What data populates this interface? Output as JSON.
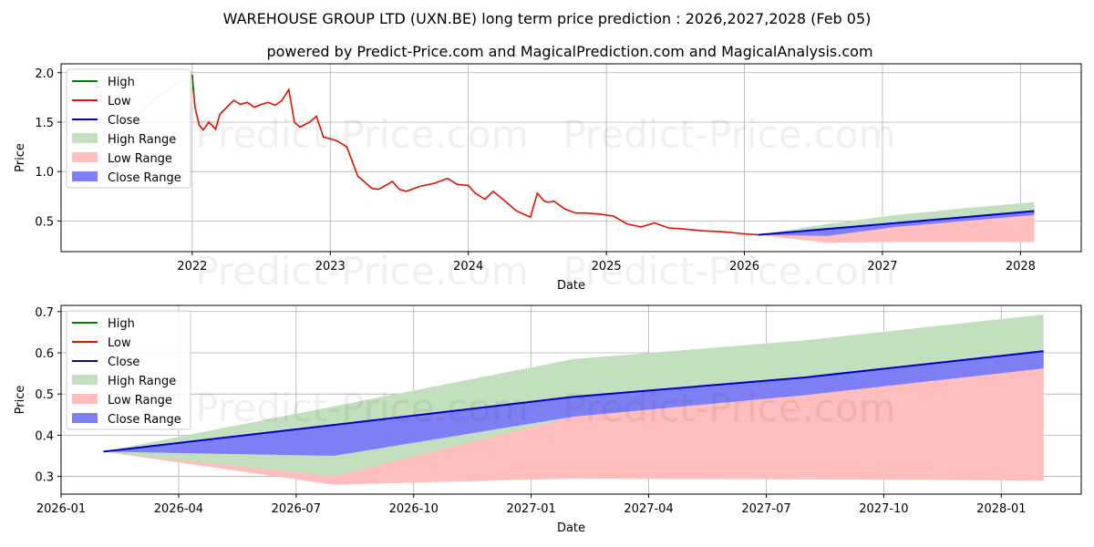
{
  "title": "WAREHOUSE GROUP LTD (UXN.BE) long term price prediction : 2026,2027,2028 (Feb 05)",
  "subtitle": "powered by Predict-Price.com and MagicalPrediction.com and MagicalAnalysis.com",
  "watermark": "Predict-Price.com",
  "colors": {
    "high": "#008000",
    "low": "#dd1100",
    "close": "#0000cc",
    "high_range": "#c2e0bd",
    "low_range": "#ffbdbd",
    "close_range": "#7f7ff5",
    "grid": "#b0b0b0"
  },
  "chart_data": [
    {
      "type": "line",
      "name": "historical-and-forecast",
      "xlabel": "Date",
      "ylabel": "Price",
      "xlim": [
        2021.05,
        2028.44
      ],
      "ylim": [
        0.19,
        2.09
      ],
      "grid": true,
      "legend_position": "top-left",
      "x_ticks": [
        2022,
        2023,
        2024,
        2025,
        2026,
        2027,
        2028
      ],
      "x_tick_labels": [
        "2022",
        "2023",
        "2024",
        "2025",
        "2026",
        "2027",
        "2028"
      ],
      "y_ticks": [
        0.5,
        1.0,
        1.5,
        2.0
      ],
      "y_tick_labels": [
        "0.5",
        "1.0",
        "1.5",
        "2.0"
      ],
      "legend": [
        "High",
        "Low",
        "Close",
        "High Range",
        "Low Range",
        "Close Range"
      ],
      "history_faded": {
        "x": [
          2021.5,
          2021.58,
          2021.66,
          2021.74,
          2021.82,
          2021.9,
          2021.99
        ],
        "y": [
          1.45,
          1.56,
          1.64,
          1.75,
          1.82,
          1.92,
          1.9
        ]
      },
      "history": {
        "x": [
          2022.0,
          2022.02,
          2022.05,
          2022.08,
          2022.12,
          2022.17,
          2022.2,
          2022.25,
          2022.3,
          2022.35,
          2022.4,
          2022.45,
          2022.5,
          2022.55,
          2022.6,
          2022.65,
          2022.7,
          2022.74,
          2022.78,
          2022.85,
          2022.9,
          2022.95,
          2023.0,
          2023.05,
          2023.12,
          2023.2,
          2023.22,
          2023.3,
          2023.35,
          2023.45,
          2023.5,
          2023.55,
          2023.65,
          2023.75,
          2023.85,
          2023.92,
          2024.0,
          2024.05,
          2024.12,
          2024.18,
          2024.25,
          2024.35,
          2024.45,
          2024.5,
          2024.55,
          2024.58,
          2024.62,
          2024.7,
          2024.78,
          2024.85,
          2024.95,
          2025.05,
          2025.15,
          2025.25,
          2025.35,
          2025.45,
          2025.55,
          2025.7,
          2025.85,
          2026.0,
          2026.1
        ],
        "y": [
          1.98,
          1.65,
          1.47,
          1.42,
          1.5,
          1.43,
          1.58,
          1.65,
          1.72,
          1.68,
          1.7,
          1.65,
          1.68,
          1.7,
          1.67,
          1.72,
          1.83,
          1.5,
          1.45,
          1.5,
          1.56,
          1.35,
          1.33,
          1.31,
          1.25,
          0.95,
          0.93,
          0.83,
          0.82,
          0.9,
          0.82,
          0.8,
          0.85,
          0.88,
          0.93,
          0.87,
          0.86,
          0.78,
          0.72,
          0.8,
          0.72,
          0.6,
          0.54,
          0.78,
          0.7,
          0.69,
          0.7,
          0.62,
          0.58,
          0.58,
          0.57,
          0.55,
          0.47,
          0.44,
          0.48,
          0.43,
          0.42,
          0.4,
          0.39,
          0.37,
          0.36
        ]
      },
      "forecast": {
        "x": [
          2026.1,
          2026.6,
          2027.1,
          2027.6,
          2028.1
        ],
        "high": [
          0.36,
          0.47,
          0.56,
          0.63,
          0.69
        ],
        "low": [
          0.36,
          0.28,
          0.29,
          0.29,
          0.29
        ],
        "close": [
          0.36,
          0.42,
          0.48,
          0.54,
          0.6
        ],
        "close_range_upper": [
          0.36,
          0.42,
          0.48,
          0.54,
          0.6
        ],
        "close_range_lower": [
          0.36,
          0.35,
          0.44,
          0.5,
          0.56
        ]
      }
    },
    {
      "type": "area",
      "name": "forecast-detail",
      "xlabel": "Date",
      "ylabel": "Price",
      "xlim": [
        2026.0,
        2028.17
      ],
      "ylim": [
        0.257,
        0.715
      ],
      "grid": true,
      "legend_position": "top-left",
      "x_ticks": [
        2026.0,
        2026.25,
        2026.5,
        2026.75,
        2027.0,
        2027.25,
        2027.5,
        2027.75,
        2028.0
      ],
      "x_tick_labels": [
        "2026-01",
        "2026-04",
        "2026-07",
        "2026-10",
        "2027-01",
        "2027-04",
        "2027-07",
        "2027-10",
        "2028-01"
      ],
      "y_ticks": [
        0.3,
        0.4,
        0.5,
        0.6,
        0.7
      ],
      "y_tick_labels": [
        "0.3",
        "0.4",
        "0.5",
        "0.6",
        "0.7"
      ],
      "legend": [
        "High",
        "Low",
        "Close",
        "High Range",
        "Low Range",
        "Close Range"
      ],
      "x": [
        2026.09,
        2026.58,
        2027.09,
        2027.58,
        2028.09
      ],
      "high_range_upper": [
        0.36,
        0.47,
        0.585,
        0.63,
        0.693
      ],
      "low_range_lower": [
        0.36,
        0.28,
        0.295,
        0.293,
        0.29
      ],
      "low_range_upper": [
        0.36,
        0.3,
        0.445,
        0.497,
        0.562
      ],
      "close_range_upper": [
        0.36,
        0.425,
        0.493,
        0.54,
        0.604
      ],
      "close_range_lower": [
        0.36,
        0.35,
        0.445,
        0.497,
        0.562
      ],
      "close": [
        0.36,
        0.425,
        0.493,
        0.54,
        0.604
      ]
    }
  ]
}
